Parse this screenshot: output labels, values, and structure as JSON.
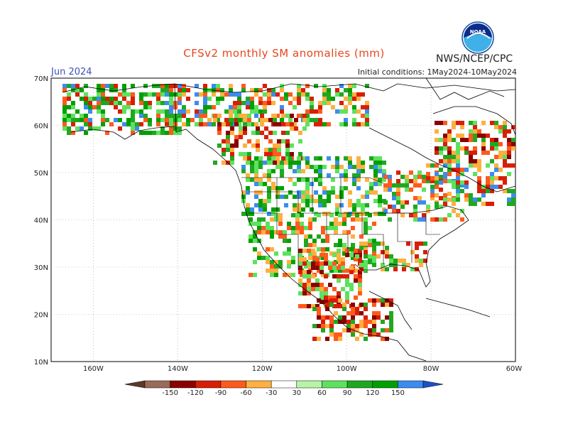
{
  "header": {
    "title": "CFSv2 monthly SM anomalies (mm)",
    "month": "Jun 2024",
    "initial_conditions": "Initial conditions: 1May2024-10May2024",
    "agency": "NWS/NCEP/CPC",
    "logo_text": "NOAA"
  },
  "map": {
    "lon_ticks": [
      "160W",
      "140W",
      "120W",
      "100W",
      "80W",
      "60W"
    ],
    "lat_ticks": [
      "70N",
      "60N",
      "50N",
      "40N",
      "30N",
      "20N",
      "10N"
    ],
    "lon_range": [
      -170,
      -60
    ],
    "lat_range": [
      10,
      70
    ],
    "gridlines": true
  },
  "colorbar": {
    "labels": [
      "-150",
      "-120",
      "-90",
      "-60",
      "-30",
      "30",
      "60",
      "90",
      "120",
      "150"
    ],
    "colors": [
      "#5a3a2a",
      "#9c6a5a",
      "#8a0000",
      "#d81e05",
      "#ff5a1e",
      "#ffb040",
      "#ffffff",
      "#b6f5a6",
      "#5ee25e",
      "#1fa81f",
      "#00a000",
      "#3c8cf0",
      "#1e50c8"
    ]
  }
}
